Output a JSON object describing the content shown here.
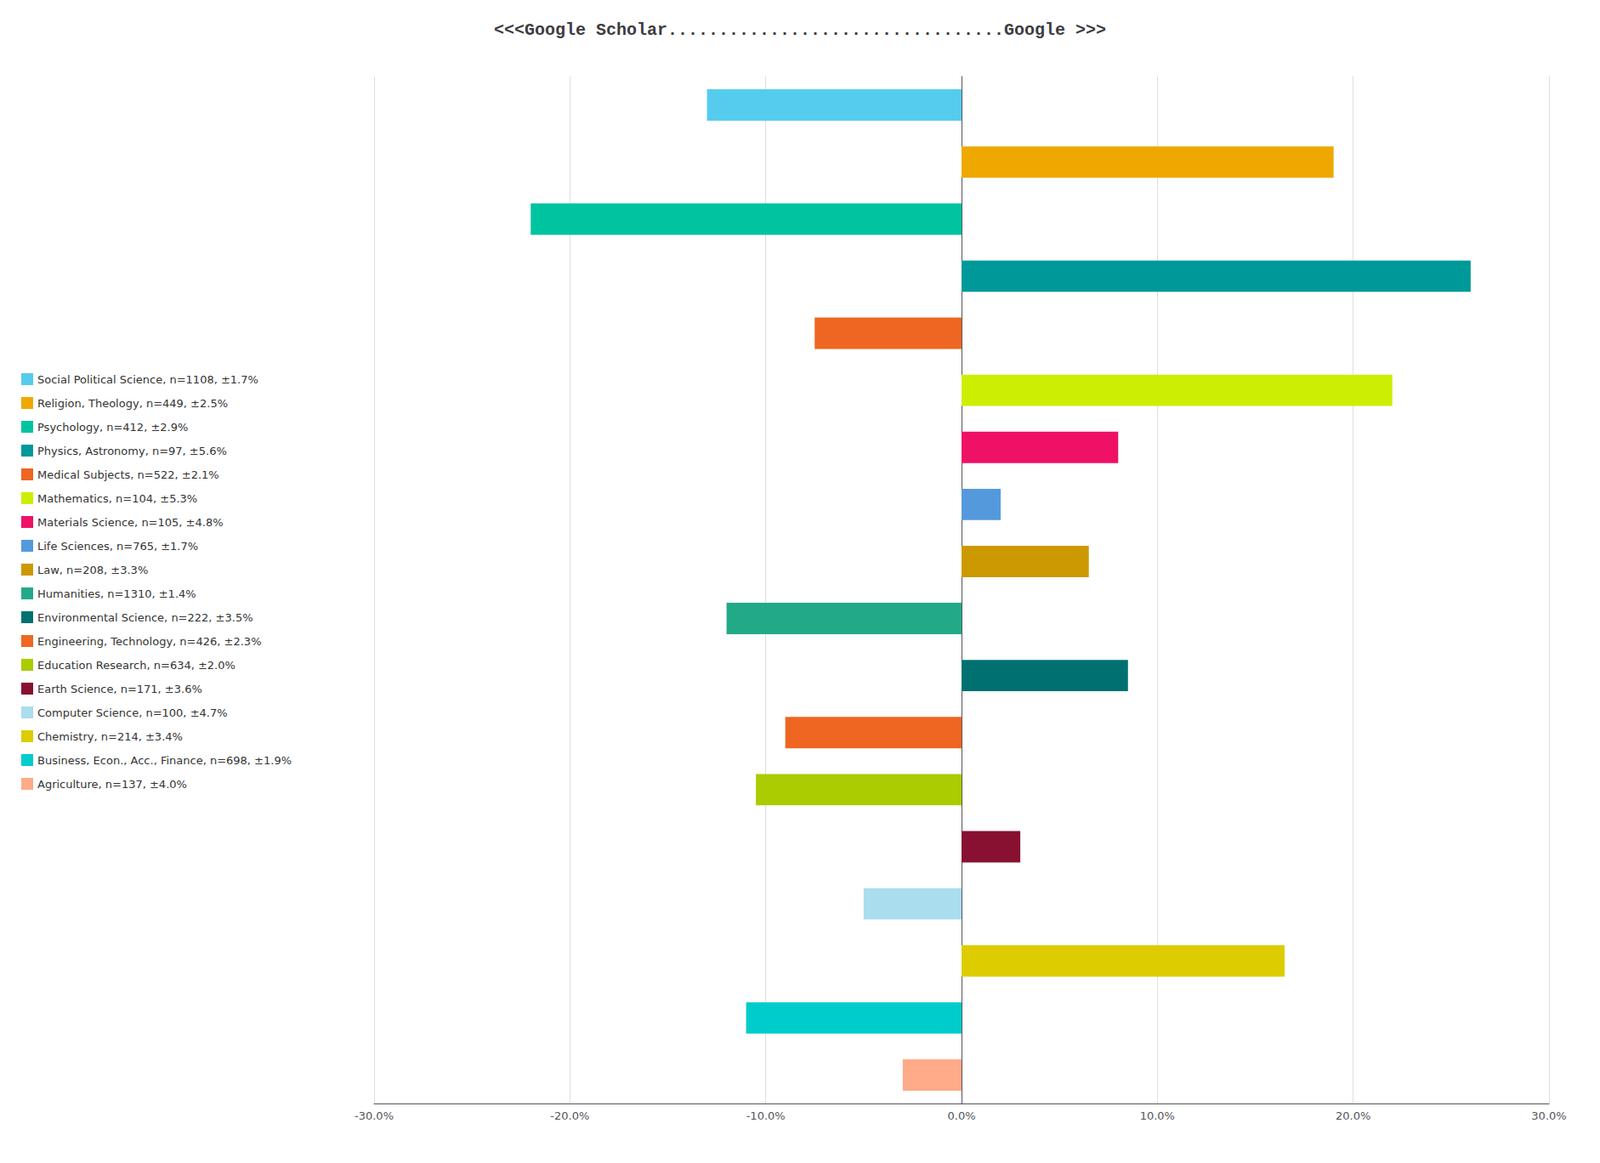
{
  "chart_data": {
    "type": "bar",
    "orientation": "horizontal",
    "title": "<<<Google Scholar.................................Google >>>",
    "categories": [
      "Social Political Science, n=1108, ±1.7%",
      "Religion, Theology, n=449, ±2.5%",
      "Psychology, n=412, ±2.9%",
      "Physics, Astronomy, n=97, ±5.6%",
      "Medical Subjects, n=522, ±2.1%",
      "Mathematics, n=104, ±5.3%",
      "Materials Science, n=105, ±4.8%",
      "Life Sciences, n=765, ±1.7%",
      "Law, n=208, ±3.3%",
      "Humanities, n=1310, ±1.4%",
      "Environmental Science, n=222, ±3.5%",
      "Engineering, Technology, n=426, ±2.3%",
      "Education Research, n=634, ±2.0%",
      "Earth Science, n=171, ±3.6%",
      "Computer Science, n=100, ±4.7%",
      "Chemistry, n=214, ±3.4%",
      "Business, Econ., Acc., Finance, n=698, ±1.9%",
      "Agriculture, n=137, ±4.0%"
    ],
    "values": [
      -13.0,
      19.0,
      -22.0,
      26.0,
      -7.5,
      22.0,
      8.0,
      2.0,
      6.5,
      -12.0,
      8.5,
      -9.0,
      -10.5,
      3.0,
      -5.0,
      16.5,
      -11.0,
      -3.0
    ],
    "colors": [
      "#55CCEE",
      "#EEA800",
      "#00C4A0",
      "#009999",
      "#EE6622",
      "#CCEE00",
      "#EE1166",
      "#5599DD",
      "#CC9900",
      "#22AA88",
      "#007070",
      "#EE6622",
      "#AACC00",
      "#881030",
      "#AADDEE",
      "#DDCC00",
      "#00CCCC",
      "#FFAA88"
    ],
    "xlim": [
      -30,
      30
    ],
    "xticks": [
      {
        "value": -30,
        "label": "-30.0%"
      },
      {
        "value": -20,
        "label": "-20.0%"
      },
      {
        "value": -10,
        "label": "-10.0%"
      },
      {
        "value": 0,
        "label": "0.0%"
      },
      {
        "value": 10,
        "label": "10.0%"
      },
      {
        "value": 20,
        "label": "20.0%"
      },
      {
        "value": 30,
        "label": "30.0%"
      }
    ],
    "grid": true,
    "legend": "left",
    "tick_labels": "x"
  }
}
